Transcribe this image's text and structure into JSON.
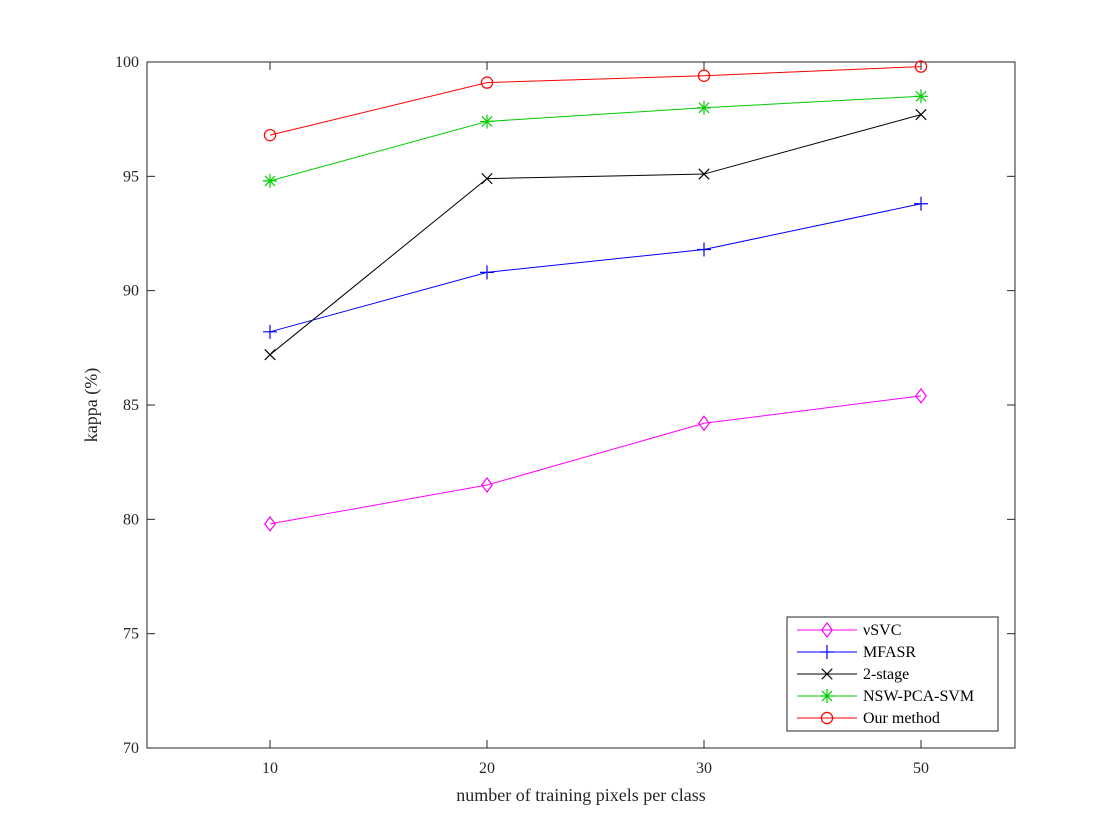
{
  "chart_data": {
    "type": "line",
    "title": "",
    "xlabel": "number of training pixels per class",
    "ylabel": "kappa (%)",
    "categories": [
      "10",
      "20",
      "30",
      "50"
    ],
    "ylim": [
      70,
      100
    ],
    "yticks": [
      70,
      75,
      80,
      85,
      90,
      95,
      100
    ],
    "grid": false,
    "legend_position": "bottom-right",
    "series": [
      {
        "name": "νSVC",
        "color": "#ff00ff",
        "marker": "diamond",
        "values": [
          79.8,
          81.5,
          84.2,
          85.4
        ]
      },
      {
        "name": "MFASR",
        "color": "#0000ff",
        "marker": "plus",
        "values": [
          88.2,
          90.8,
          91.8,
          93.8
        ]
      },
      {
        "name": "2-stage",
        "color": "#000000",
        "marker": "x",
        "values": [
          87.2,
          94.9,
          95.1,
          97.7
        ]
      },
      {
        "name": "NSW-PCA-SVM",
        "color": "#00cc00",
        "marker": "asterisk",
        "values": [
          94.8,
          97.4,
          98.0,
          98.5
        ]
      },
      {
        "name": "Our method",
        "color": "#ff0000",
        "marker": "circle",
        "values": [
          96.8,
          99.1,
          99.4,
          99.8
        ]
      }
    ]
  }
}
